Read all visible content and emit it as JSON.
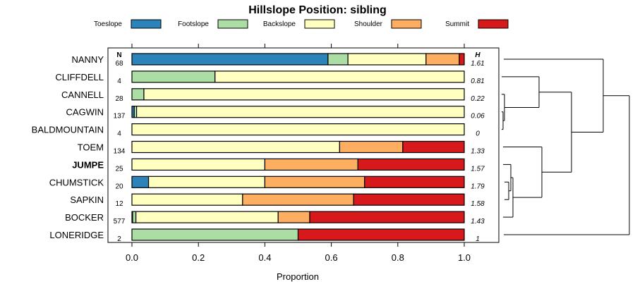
{
  "chart_data": {
    "type": "bar",
    "orientation": "horizontal",
    "stacked": true,
    "title": "Hillslope Position: sibling",
    "xlabel": "Proportion",
    "xlim": [
      0,
      1
    ],
    "xticks": [
      "0.0",
      "0.2",
      "0.4",
      "0.6",
      "0.8",
      "1.0"
    ],
    "n_header": "N",
    "h_header": "H",
    "legend_placement": "top",
    "categories": [
      "NANNY",
      "CLIFFDELL",
      "CANNELL",
      "CAGWIN",
      "BALDMOUNTAIN",
      "TOEM",
      "JUMPE",
      "CHUMSTICK",
      "SAPKIN",
      "BOCKER",
      "LONERIDGE"
    ],
    "highlighted": "JUMPE",
    "n": [
      "68",
      "4",
      "28",
      "137",
      "4",
      "134",
      "25",
      "20",
      "12",
      "577",
      "2"
    ],
    "h": [
      "1.61",
      "0.81",
      "0.22",
      "0.06",
      "0",
      "1.33",
      "1.57",
      "1.79",
      "1.58",
      "1.43",
      "1"
    ],
    "series": [
      {
        "name": "Toeslope",
        "color": "#2b83ba",
        "values": [
          0.59,
          0,
          0,
          0.007,
          0,
          0,
          0,
          0.05,
          0,
          0.002,
          0
        ]
      },
      {
        "name": "Footslope",
        "color": "#abdda4",
        "values": [
          0.06,
          0.25,
          0.036,
          0.007,
          0,
          0,
          0,
          0,
          0,
          0.01,
          0.5
        ]
      },
      {
        "name": "Backslope",
        "color": "#ffffbf",
        "values": [
          0.235,
          0.75,
          0.964,
          0.986,
          1.0,
          0.625,
          0.4,
          0.35,
          0.333,
          0.428,
          0
        ]
      },
      {
        "name": "Shoulder",
        "color": "#fdae61",
        "values": [
          0.1,
          0,
          0,
          0,
          0,
          0.19,
          0.28,
          0.3,
          0.334,
          0.095,
          0
        ]
      },
      {
        "name": "Summit",
        "color": "#d7191c",
        "values": [
          0.015,
          0,
          0,
          0,
          0,
          0.185,
          0.32,
          0.3,
          0.333,
          0.465,
          0.5
        ]
      }
    ],
    "grid": false,
    "dendrogram": true
  }
}
